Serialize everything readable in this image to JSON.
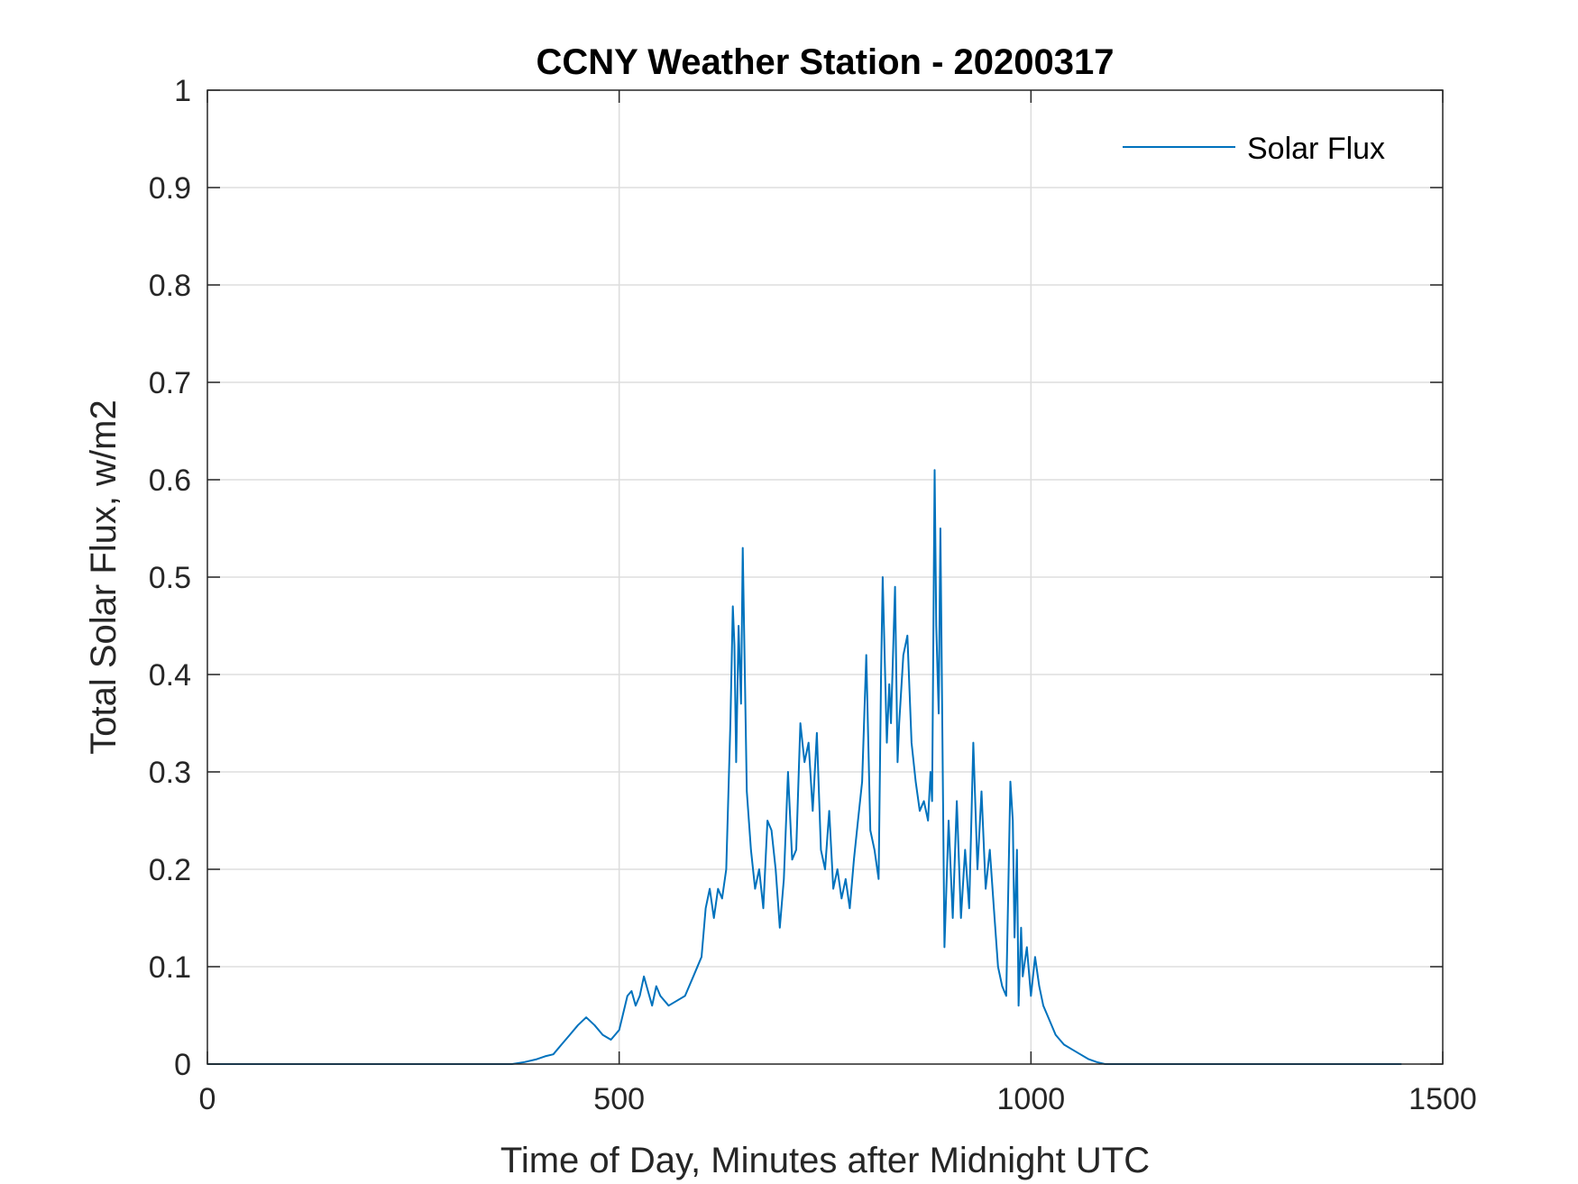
{
  "chart_data": {
    "type": "line",
    "title": "CCNY Weather Station - 20200317",
    "xlabel": "Time of Day, Minutes after Midnight UTC",
    "ylabel": "Total Solar Flux, w/m2",
    "xlim": [
      0,
      1500
    ],
    "ylim": [
      0,
      1
    ],
    "xticks": [
      0,
      500,
      1000,
      1500
    ],
    "xtick_labels": [
      "0",
      "500",
      "1000",
      "1500"
    ],
    "yticks": [
      0,
      0.1,
      0.2,
      0.3,
      0.4,
      0.5,
      0.6,
      0.7,
      0.8,
      0.9,
      1
    ],
    "ytick_labels": [
      "0",
      "0.1",
      "0.2",
      "0.3",
      "0.4",
      "0.5",
      "0.6",
      "0.7",
      "0.8",
      "0.9",
      "1"
    ],
    "grid": true,
    "legend_position": "top-right",
    "colors": {
      "series": "#0072BD",
      "grid": "#dddddd",
      "axis": "#262626"
    },
    "series": [
      {
        "name": "Solar Flux",
        "x": [
          0,
          370,
          385,
          400,
          410,
          420,
          430,
          440,
          450,
          460,
          470,
          480,
          490,
          500,
          510,
          515,
          520,
          525,
          530,
          535,
          540,
          545,
          550,
          560,
          570,
          580,
          590,
          600,
          605,
          610,
          615,
          620,
          625,
          630,
          635,
          638,
          640,
          642,
          645,
          648,
          650,
          655,
          660,
          665,
          670,
          675,
          680,
          685,
          690,
          695,
          700,
          705,
          710,
          715,
          720,
          725,
          730,
          735,
          740,
          745,
          750,
          755,
          760,
          765,
          770,
          775,
          780,
          785,
          790,
          795,
          800,
          805,
          810,
          815,
          818,
          820,
          825,
          828,
          830,
          835,
          838,
          840,
          845,
          850,
          855,
          860,
          865,
          870,
          875,
          878,
          880,
          883,
          885,
          888,
          890,
          895,
          900,
          905,
          910,
          915,
          920,
          925,
          930,
          935,
          940,
          945,
          950,
          955,
          960,
          965,
          970,
          975,
          978,
          980,
          983,
          985,
          988,
          990,
          995,
          1000,
          1005,
          1010,
          1015,
          1020,
          1030,
          1040,
          1050,
          1060,
          1070,
          1080,
          1090,
          1100,
          1110,
          1200,
          1300,
          1450
        ],
        "values": [
          0,
          0,
          0.002,
          0.005,
          0.008,
          0.01,
          0.02,
          0.03,
          0.04,
          0.048,
          0.04,
          0.03,
          0.025,
          0.035,
          0.07,
          0.075,
          0.06,
          0.07,
          0.09,
          0.075,
          0.06,
          0.08,
          0.07,
          0.06,
          0.065,
          0.07,
          0.09,
          0.11,
          0.16,
          0.18,
          0.15,
          0.18,
          0.17,
          0.2,
          0.35,
          0.47,
          0.43,
          0.31,
          0.45,
          0.37,
          0.53,
          0.28,
          0.22,
          0.18,
          0.2,
          0.16,
          0.25,
          0.24,
          0.2,
          0.14,
          0.19,
          0.3,
          0.21,
          0.22,
          0.35,
          0.31,
          0.33,
          0.26,
          0.34,
          0.22,
          0.2,
          0.26,
          0.18,
          0.2,
          0.17,
          0.19,
          0.16,
          0.21,
          0.25,
          0.29,
          0.42,
          0.24,
          0.22,
          0.19,
          0.4,
          0.5,
          0.33,
          0.39,
          0.35,
          0.49,
          0.31,
          0.35,
          0.42,
          0.44,
          0.33,
          0.29,
          0.26,
          0.27,
          0.25,
          0.3,
          0.27,
          0.61,
          0.45,
          0.36,
          0.55,
          0.12,
          0.25,
          0.15,
          0.27,
          0.15,
          0.22,
          0.16,
          0.33,
          0.2,
          0.28,
          0.18,
          0.22,
          0.16,
          0.1,
          0.08,
          0.07,
          0.29,
          0.25,
          0.13,
          0.22,
          0.06,
          0.14,
          0.09,
          0.12,
          0.07,
          0.11,
          0.08,
          0.06,
          0.05,
          0.03,
          0.02,
          0.015,
          0.01,
          0.005,
          0.002,
          0,
          0,
          0,
          0,
          0,
          0
        ]
      }
    ]
  }
}
